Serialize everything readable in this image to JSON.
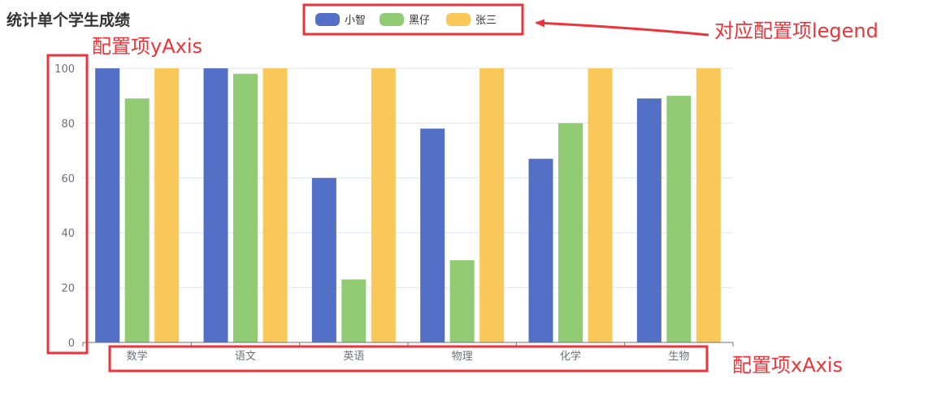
{
  "chart_data": {
    "type": "bar",
    "title": "统计单个学生成绩",
    "categories": [
      "数学",
      "语文",
      "英语",
      "物理",
      "化学",
      "生物"
    ],
    "series": [
      {
        "name": "小智",
        "color": "#5470c6",
        "values": [
          100,
          100,
          60,
          78,
          67,
          89
        ]
      },
      {
        "name": "黑仔",
        "color": "#91cc75",
        "values": [
          89,
          98,
          23,
          30,
          80,
          90
        ]
      },
      {
        "name": "张三",
        "color": "#fac858",
        "values": [
          100,
          100,
          100,
          100,
          100,
          100
        ]
      }
    ],
    "ylim": [
      0,
      100
    ],
    "yticks": [
      0,
      20,
      40,
      60,
      80,
      100
    ],
    "grid": true,
    "legend_position": "top-center"
  },
  "annotations": {
    "legend_note": "对应配置项legend",
    "yaxis_note": "配置项yAxis",
    "xaxis_note": "配置项xAxis",
    "highlight_color": "#e8363c"
  }
}
